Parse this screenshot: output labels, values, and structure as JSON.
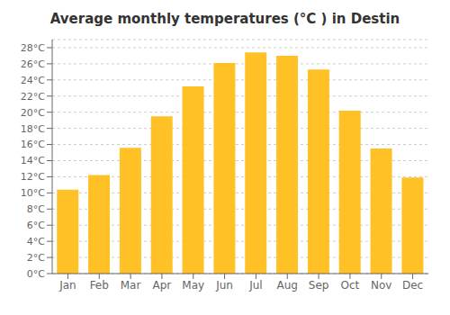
{
  "chart_data": {
    "type": "bar",
    "title": "Average monthly temperatures (°C ) in Destin",
    "categories": [
      "Jan",
      "Feb",
      "Mar",
      "Apr",
      "May",
      "Jun",
      "Jul",
      "Aug",
      "Sep",
      "Oct",
      "Nov",
      "Dec"
    ],
    "values": [
      10.4,
      12.2,
      15.6,
      19.5,
      23.2,
      26.1,
      27.4,
      27.0,
      25.3,
      20.2,
      15.5,
      11.9
    ],
    "color": "#FFC125",
    "ylim": [
      0,
      29
    ],
    "yticks": [
      {
        "value": 0,
        "label": "0°C"
      },
      {
        "value": 2,
        "label": "2°C"
      },
      {
        "value": 4,
        "label": "4°C"
      },
      {
        "value": 6,
        "label": "6°C"
      },
      {
        "value": 8,
        "label": "8°C"
      },
      {
        "value": 10,
        "label": "10°C"
      },
      {
        "value": 12,
        "label": "12°C"
      },
      {
        "value": 14,
        "label": "14°C"
      },
      {
        "value": 16,
        "label": "16°C"
      },
      {
        "value": 18,
        "label": "18°C"
      },
      {
        "value": 20,
        "label": "20°C"
      },
      {
        "value": 22,
        "label": "22°C"
      },
      {
        "value": 24,
        "label": "24°C"
      },
      {
        "value": 26,
        "label": "26°C"
      },
      {
        "value": 28,
        "label": "28°C"
      }
    ],
    "grid": true
  }
}
